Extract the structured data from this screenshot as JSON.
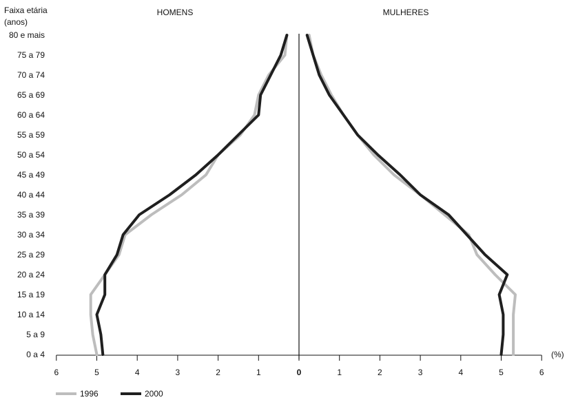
{
  "chart_data": {
    "type": "line",
    "title": "",
    "left_header": "HOMENS",
    "right_header": "MULHERES",
    "ylabel": [
      "Faixa etária",
      "(anos)"
    ],
    "xlabel": "",
    "x_unit_label": "(%)",
    "x_ticks_left": [
      6,
      5,
      4,
      3,
      2,
      1
    ],
    "x_tick_zero": "0",
    "x_ticks_right": [
      1,
      2,
      3,
      4,
      5,
      6
    ],
    "xlim": [
      -6,
      6
    ],
    "categories": [
      "0 a 4",
      "5 a 9",
      "10 a 14",
      "15 a 19",
      "20 a 24",
      "25 a 29",
      "30 a 34",
      "35 a 39",
      "40 a 44",
      "45 a 49",
      "50 a 54",
      "55 a 59",
      "60 a 64",
      "65 a 69",
      "70 a 74",
      "75 a 79",
      "80 e mais"
    ],
    "series": [
      {
        "name": "1996",
        "color": "#bdbdbd",
        "homens": [
          5.0,
          5.1,
          5.15,
          5.15,
          4.8,
          4.45,
          4.3,
          3.65,
          2.9,
          2.3,
          2.0,
          1.45,
          1.1,
          1.0,
          0.75,
          0.35,
          0.3
        ],
        "mulheres": [
          5.3,
          5.3,
          5.3,
          5.35,
          4.85,
          4.4,
          4.2,
          3.6,
          3.0,
          2.35,
          1.85,
          1.45,
          1.1,
          0.8,
          0.55,
          0.35,
          0.25
        ]
      },
      {
        "name": "2000",
        "color": "#1f1f1f",
        "homens": [
          4.85,
          4.9,
          5.0,
          4.8,
          4.8,
          4.5,
          4.35,
          3.95,
          3.2,
          2.55,
          2.0,
          1.5,
          1.0,
          0.95,
          0.7,
          0.45,
          0.3
        ],
        "mulheres": [
          5.0,
          5.05,
          5.05,
          4.95,
          5.15,
          4.6,
          4.15,
          3.7,
          3.0,
          2.5,
          1.95,
          1.45,
          1.1,
          0.75,
          0.5,
          0.35,
          0.2
        ]
      }
    ],
    "grid": false,
    "legend_position": "bottom-left"
  }
}
